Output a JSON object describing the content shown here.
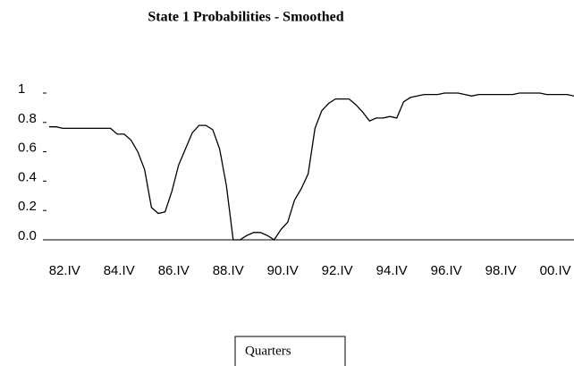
{
  "chart_data": {
    "type": "line",
    "title": "State 1  Probabilities - Smoothed",
    "x_label": "Quarters",
    "categories": [
      null,
      null,
      "82.IV",
      null,
      null,
      null,
      null,
      null,
      null,
      null,
      "84.IV",
      null,
      null,
      null,
      null,
      null,
      null,
      null,
      "86.IV",
      null,
      null,
      null,
      null,
      null,
      null,
      null,
      "88.IV",
      null,
      null,
      null,
      null,
      null,
      null,
      null,
      "90.IV",
      null,
      null,
      null,
      null,
      null,
      null,
      null,
      "92.IV",
      null,
      null,
      null,
      null,
      null,
      null,
      null,
      "94.IV",
      null,
      null,
      null,
      null,
      null,
      null,
      null,
      "96.IV",
      null,
      null,
      null,
      null,
      null,
      null,
      null,
      "98.IV",
      null,
      null,
      null,
      null,
      null,
      null,
      null,
      "00.IV",
      null,
      null,
      null
    ],
    "series": [
      {
        "color": "#000000",
        "values": [
          0.77,
          0.77,
          0.76,
          0.76,
          0.76,
          0.76,
          0.76,
          0.76,
          0.76,
          0.76,
          0.72,
          0.72,
          0.68,
          0.6,
          0.48,
          0.22,
          0.18,
          0.19,
          0.33,
          0.51,
          0.62,
          0.73,
          0.78,
          0.78,
          0.75,
          0.62,
          0.37,
          0,
          0,
          0.03,
          0.05,
          0.05,
          0.03,
          0,
          0.07,
          0.12,
          0.27,
          0.35,
          0.45,
          0.76,
          0.88,
          0.93,
          0.96,
          0.96,
          0.96,
          0.92,
          0.87,
          0.81,
          0.83,
          0.83,
          0.84,
          0.83,
          0.94,
          0.97,
          0.98,
          0.99,
          0.99,
          0.99,
          1,
          1,
          1,
          0.99,
          0.98,
          0.99,
          0.99,
          0.99,
          0.99,
          0.99,
          0.99,
          1,
          1,
          1,
          1,
          0.99,
          0.99,
          0.99,
          0.99,
          0.98
        ]
      }
    ],
    "ylim": [
      0,
      1
    ],
    "yticks": [
      {
        "value": 0,
        "label": "0.0"
      },
      0.2,
      0.4,
      0.6,
      0.8,
      1
    ]
  }
}
